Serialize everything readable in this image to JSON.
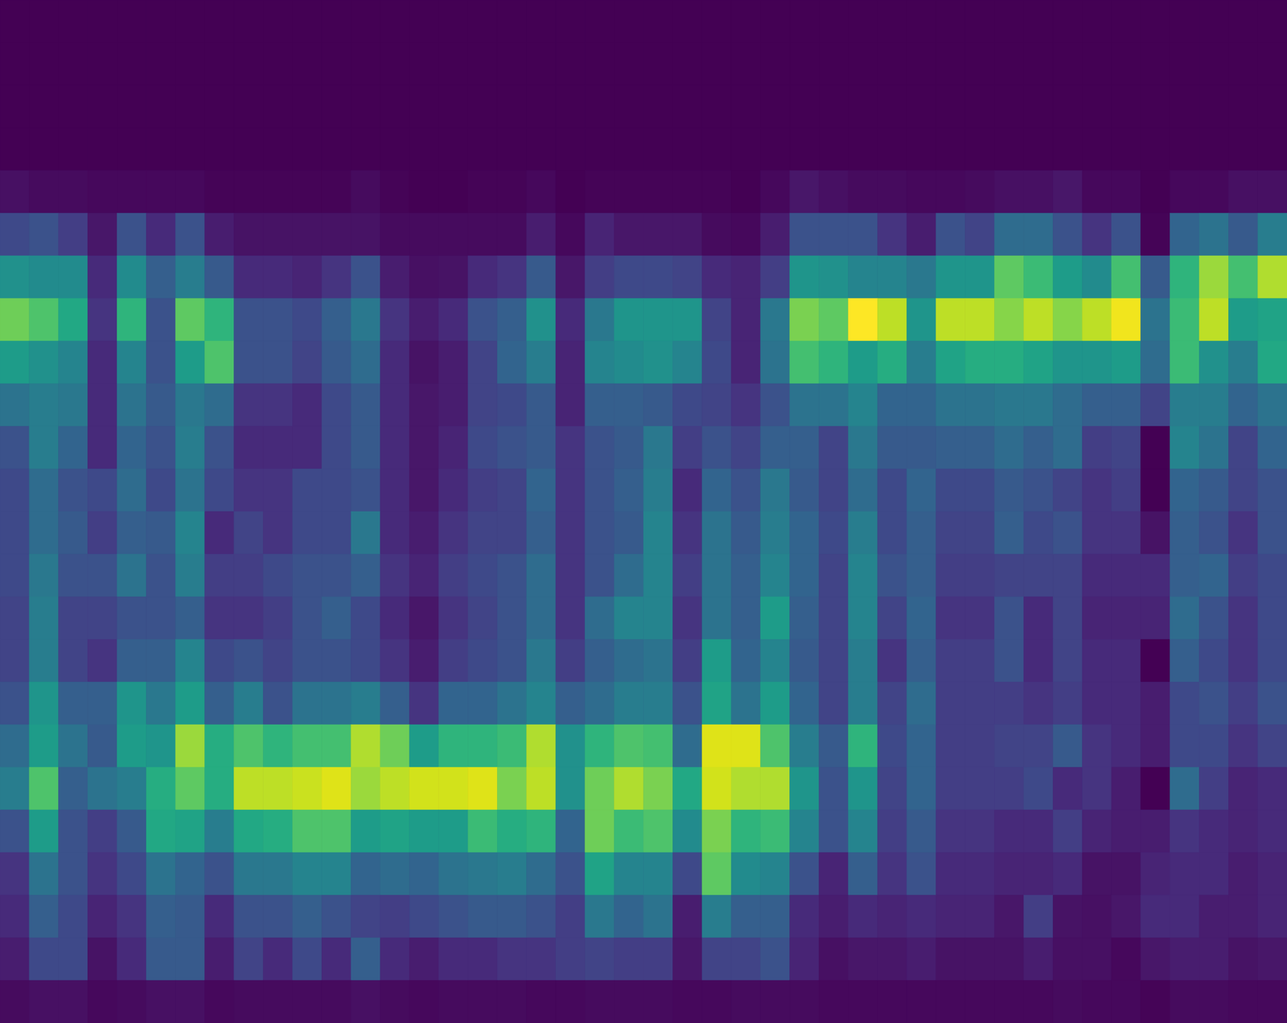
{
  "chart_data": {
    "type": "heatmap",
    "color": "viridis",
    "tick_labels": false,
    "cells": [
      [
        0,
        0,
        0,
        0,
        0,
        0,
        0,
        0,
        0,
        0,
        0,
        0,
        0,
        0,
        0,
        0,
        0,
        0,
        0,
        0,
        0,
        0,
        0,
        0,
        0,
        0,
        0,
        0,
        0,
        0,
        0,
        0,
        0,
        0,
        0,
        0,
        0,
        0,
        0,
        0,
        0,
        0,
        0,
        0
      ],
      [
        0,
        0,
        0,
        0,
        0,
        0,
        0,
        0,
        0,
        0,
        0,
        0,
        0,
        0,
        0,
        0,
        0,
        0,
        0,
        0,
        0,
        0,
        0,
        0,
        0,
        0,
        0,
        0,
        0,
        0,
        0,
        0,
        0,
        0,
        0,
        0,
        0,
        0,
        0,
        0,
        0,
        0,
        0,
        0
      ],
      [
        0,
        0,
        0,
        0,
        0,
        0,
        0,
        0,
        0,
        0,
        0,
        0,
        0,
        0,
        0,
        0,
        0,
        0,
        0,
        0,
        0,
        0,
        0,
        0,
        0,
        0,
        0,
        0,
        0,
        0,
        0,
        0,
        0,
        0,
        0,
        0,
        0,
        0,
        0,
        0,
        0,
        0,
        0,
        0
      ],
      [
        0,
        0,
        0,
        0,
        0,
        0,
        0,
        0,
        0,
        0,
        0,
        0,
        0,
        0,
        0,
        0,
        0,
        0,
        0,
        0,
        0,
        0,
        0,
        0,
        0,
        0,
        0,
        0,
        0,
        0,
        0,
        0,
        0,
        0,
        0,
        0,
        0,
        0,
        0,
        0,
        0,
        0,
        0,
        0
      ],
      [
        0.04,
        0.03,
        0.03,
        0.02,
        0.02,
        0.02,
        0.02,
        0.01,
        0.01,
        0.01,
        0.01,
        0.01,
        0.03,
        0.01,
        0,
        0,
        0.01,
        0.01,
        0.02,
        0,
        0.01,
        0.01,
        0.01,
        0.01,
        0.01,
        0,
        0.02,
        0.06,
        0.04,
        0.03,
        0.03,
        0.02,
        0.02,
        0.03,
        0.04,
        0.04,
        0.06,
        0.02,
        0.02,
        0,
        0.02,
        0.02,
        0.04,
        0.04
      ],
      [
        0.22,
        0.25,
        0.18,
        0.06,
        0.25,
        0.12,
        0.25,
        0.08,
        0.05,
        0.05,
        0.05,
        0.05,
        0.05,
        0.03,
        0.03,
        0.03,
        0.03,
        0.03,
        0.08,
        0.02,
        0.1,
        0.06,
        0.06,
        0.06,
        0.03,
        0.02,
        0.08,
        0.25,
        0.25,
        0.25,
        0.15,
        0.08,
        0.25,
        0.2,
        0.35,
        0.35,
        0.25,
        0.15,
        0.25,
        0.01,
        0.32,
        0.38,
        0.28,
        0.42
      ],
      [
        0.5,
        0.48,
        0.48,
        0.12,
        0.48,
        0.3,
        0.42,
        0.28,
        0.12,
        0.12,
        0.1,
        0.15,
        0.25,
        0.08,
        0.04,
        0.05,
        0.12,
        0.15,
        0.28,
        0.06,
        0.18,
        0.22,
        0.22,
        0.2,
        0.12,
        0.1,
        0.18,
        0.52,
        0.5,
        0.45,
        0.45,
        0.4,
        0.52,
        0.52,
        0.75,
        0.68,
        0.55,
        0.48,
        0.7,
        0.28,
        0.65,
        0.85,
        0.7,
        0.88
      ],
      [
        0.78,
        0.72,
        0.6,
        0.15,
        0.65,
        0.25,
        0.75,
        0.65,
        0.25,
        0.25,
        0.22,
        0.3,
        0.4,
        0.15,
        0.08,
        0.12,
        0.25,
        0.3,
        0.5,
        0.12,
        0.4,
        0.52,
        0.52,
        0.52,
        0.2,
        0.1,
        0.4,
        0.8,
        0.75,
        1.0,
        0.9,
        0.52,
        0.9,
        0.9,
        0.82,
        0.9,
        0.82,
        0.9,
        0.98,
        0.38,
        0.68,
        0.9,
        0.55,
        0.58
      ],
      [
        0.55,
        0.5,
        0.45,
        0.12,
        0.45,
        0.25,
        0.55,
        0.72,
        0.25,
        0.25,
        0.2,
        0.28,
        0.35,
        0.12,
        0.05,
        0.08,
        0.2,
        0.32,
        0.42,
        0.1,
        0.45,
        0.48,
        0.5,
        0.45,
        0.22,
        0.1,
        0.38,
        0.7,
        0.65,
        0.55,
        0.62,
        0.42,
        0.58,
        0.62,
        0.62,
        0.58,
        0.52,
        0.52,
        0.55,
        0.35,
        0.68,
        0.5,
        0.42,
        0.6
      ],
      [
        0.38,
        0.42,
        0.4,
        0.12,
        0.38,
        0.28,
        0.4,
        0.35,
        0.15,
        0.15,
        0.12,
        0.22,
        0.28,
        0.12,
        0.06,
        0.08,
        0.2,
        0.22,
        0.28,
        0.1,
        0.3,
        0.3,
        0.28,
        0.22,
        0.2,
        0.15,
        0.25,
        0.38,
        0.38,
        0.45,
        0.32,
        0.32,
        0.38,
        0.38,
        0.4,
        0.4,
        0.35,
        0.3,
        0.3,
        0.2,
        0.42,
        0.42,
        0.32,
        0.38
      ],
      [
        0.25,
        0.42,
        0.32,
        0.12,
        0.32,
        0.25,
        0.42,
        0.25,
        0.12,
        0.12,
        0.12,
        0.22,
        0.28,
        0.12,
        0.06,
        0.1,
        0.22,
        0.25,
        0.28,
        0.15,
        0.25,
        0.28,
        0.4,
        0.18,
        0.25,
        0.2,
        0.3,
        0.3,
        0.2,
        0.4,
        0.28,
        0.28,
        0.3,
        0.3,
        0.35,
        0.3,
        0.35,
        0.18,
        0.2,
        0,
        0.45,
        0.38,
        0.2,
        0.32
      ],
      [
        0.22,
        0.35,
        0.25,
        0.22,
        0.35,
        0.22,
        0.38,
        0.22,
        0.15,
        0.15,
        0.22,
        0.22,
        0.25,
        0.12,
        0.06,
        0.12,
        0.18,
        0.2,
        0.32,
        0.15,
        0.25,
        0.3,
        0.42,
        0.12,
        0.32,
        0.25,
        0.4,
        0.28,
        0.2,
        0.35,
        0.22,
        0.32,
        0.22,
        0.22,
        0.28,
        0.25,
        0.2,
        0.15,
        0.18,
        0,
        0.32,
        0.28,
        0.2,
        0.25
      ],
      [
        0.22,
        0.35,
        0.28,
        0.18,
        0.3,
        0.28,
        0.45,
        0.12,
        0.2,
        0.15,
        0.22,
        0.22,
        0.4,
        0.12,
        0.08,
        0.15,
        0.2,
        0.2,
        0.3,
        0.15,
        0.25,
        0.28,
        0.45,
        0.15,
        0.38,
        0.28,
        0.42,
        0.32,
        0.22,
        0.42,
        0.22,
        0.3,
        0.2,
        0.2,
        0.3,
        0.22,
        0.25,
        0.15,
        0.15,
        0.05,
        0.3,
        0.25,
        0.15,
        0.25
      ],
      [
        0.22,
        0.4,
        0.25,
        0.25,
        0.38,
        0.25,
        0.42,
        0.18,
        0.18,
        0.22,
        0.25,
        0.25,
        0.3,
        0.15,
        0.1,
        0.18,
        0.22,
        0.25,
        0.35,
        0.15,
        0.25,
        0.35,
        0.45,
        0.18,
        0.38,
        0.3,
        0.45,
        0.32,
        0.2,
        0.45,
        0.25,
        0.3,
        0.18,
        0.18,
        0.2,
        0.2,
        0.2,
        0.12,
        0.12,
        0.12,
        0.3,
        0.32,
        0.18,
        0.22
      ],
      [
        0.2,
        0.42,
        0.2,
        0.2,
        0.25,
        0.25,
        0.3,
        0.15,
        0.15,
        0.18,
        0.25,
        0.3,
        0.22,
        0.12,
        0.06,
        0.15,
        0.2,
        0.25,
        0.35,
        0.15,
        0.35,
        0.45,
        0.45,
        0.15,
        0.38,
        0.3,
        0.55,
        0.3,
        0.2,
        0.45,
        0.2,
        0.32,
        0.15,
        0.15,
        0.25,
        0.12,
        0.2,
        0.1,
        0.1,
        0.1,
        0.35,
        0.25,
        0.15,
        0.22
      ],
      [
        0.2,
        0.42,
        0.2,
        0.15,
        0.3,
        0.3,
        0.45,
        0.22,
        0.25,
        0.2,
        0.25,
        0.25,
        0.22,
        0.15,
        0.08,
        0.18,
        0.22,
        0.25,
        0.4,
        0.18,
        0.3,
        0.35,
        0.38,
        0.18,
        0.55,
        0.32,
        0.45,
        0.28,
        0.2,
        0.42,
        0.15,
        0.3,
        0.18,
        0.18,
        0.25,
        0.12,
        0.2,
        0.12,
        0.12,
        0,
        0.3,
        0.22,
        0.15,
        0.22
      ],
      [
        0.25,
        0.52,
        0.3,
        0.3,
        0.52,
        0.4,
        0.55,
        0.3,
        0.42,
        0.25,
        0.38,
        0.38,
        0.42,
        0.3,
        0.15,
        0.32,
        0.32,
        0.38,
        0.45,
        0.3,
        0.35,
        0.42,
        0.42,
        0.25,
        0.58,
        0.38,
        0.55,
        0.32,
        0.2,
        0.42,
        0.2,
        0.35,
        0.18,
        0.18,
        0.18,
        0.15,
        0.18,
        0.12,
        0.12,
        0.08,
        0.22,
        0.25,
        0.18,
        0.25
      ],
      [
        0.35,
        0.55,
        0.38,
        0.28,
        0.55,
        0.52,
        0.85,
        0.62,
        0.72,
        0.65,
        0.7,
        0.7,
        0.88,
        0.78,
        0.55,
        0.65,
        0.65,
        0.68,
        0.88,
        0.5,
        0.65,
        0.72,
        0.7,
        0.35,
        0.95,
        0.95,
        0.72,
        0.42,
        0.28,
        0.65,
        0.22,
        0.32,
        0.18,
        0.18,
        0.2,
        0.2,
        0.28,
        0.15,
        0.12,
        0.08,
        0.22,
        0.22,
        0.15,
        0.2
      ],
      [
        0.42,
        0.72,
        0.3,
        0.38,
        0.42,
        0.62,
        0.75,
        0.62,
        0.9,
        0.9,
        0.92,
        0.95,
        0.85,
        0.9,
        0.93,
        0.93,
        0.95,
        0.8,
        0.9,
        0.5,
        0.78,
        0.88,
        0.8,
        0.6,
        0.93,
        0.88,
        0.88,
        0.52,
        0.25,
        0.52,
        0.2,
        0.32,
        0.18,
        0.18,
        0.18,
        0.22,
        0.12,
        0.15,
        0.08,
        0,
        0.35,
        0.18,
        0.1,
        0.12
      ],
      [
        0.25,
        0.55,
        0.25,
        0.18,
        0.28,
        0.6,
        0.58,
        0.42,
        0.6,
        0.62,
        0.72,
        0.72,
        0.55,
        0.58,
        0.55,
        0.55,
        0.68,
        0.62,
        0.65,
        0.32,
        0.78,
        0.68,
        0.72,
        0.48,
        0.8,
        0.65,
        0.68,
        0.45,
        0.25,
        0.45,
        0.18,
        0.28,
        0.15,
        0.15,
        0.12,
        0.12,
        0.18,
        0.1,
        0.08,
        0.08,
        0.15,
        0.12,
        0.1,
        0.12
      ],
      [
        0.15,
        0.38,
        0.25,
        0.15,
        0.22,
        0.38,
        0.32,
        0.25,
        0.4,
        0.4,
        0.45,
        0.45,
        0.32,
        0.35,
        0.32,
        0.38,
        0.4,
        0.42,
        0.35,
        0.25,
        0.58,
        0.45,
        0.45,
        0.22,
        0.75,
        0.48,
        0.45,
        0.25,
        0.1,
        0.3,
        0.15,
        0.25,
        0.12,
        0.12,
        0.1,
        0.1,
        0.12,
        0.05,
        0.05,
        0.1,
        0.12,
        0.12,
        0.08,
        0.1
      ],
      [
        0.12,
        0.3,
        0.22,
        0.1,
        0.15,
        0.3,
        0.28,
        0.12,
        0.25,
        0.25,
        0.3,
        0.25,
        0.2,
        0.18,
        0.22,
        0.25,
        0.28,
        0.28,
        0.25,
        0.18,
        0.4,
        0.32,
        0.38,
        0.08,
        0.42,
        0.3,
        0.3,
        0.12,
        0.08,
        0.12,
        0.1,
        0.12,
        0.1,
        0.1,
        0.06,
        0.18,
        0.05,
        0.04,
        0.06,
        0.12,
        0.12,
        0.08,
        0.08,
        0.1
      ],
      [
        0.08,
        0.22,
        0.22,
        0.05,
        0.12,
        0.28,
        0.28,
        0.08,
        0.2,
        0.12,
        0.22,
        0.12,
        0.3,
        0.12,
        0.08,
        0.12,
        0.12,
        0.15,
        0.15,
        0.18,
        0.2,
        0.18,
        0.18,
        0.06,
        0.2,
        0.2,
        0.25,
        0.1,
        0.04,
        0.06,
        0.06,
        0.08,
        0.05,
        0.05,
        0.05,
        0.08,
        0.04,
        0.04,
        0.02,
        0.06,
        0.08,
        0.08,
        0.05,
        0.06
      ],
      [
        0.03,
        0.04,
        0.04,
        0.02,
        0.03,
        0.04,
        0.04,
        0.02,
        0.03,
        0.03,
        0.03,
        0.03,
        0.04,
        0.03,
        0.02,
        0.03,
        0.03,
        0.03,
        0.02,
        0.02,
        0.03,
        0.03,
        0.03,
        0.02,
        0.02,
        0.03,
        0.03,
        0.03,
        0.02,
        0.02,
        0.02,
        0.02,
        0.02,
        0.02,
        0.02,
        0.02,
        0.03,
        0.02,
        0.02,
        0.01,
        0.03,
        0.03,
        0.02,
        0.02
      ]
    ]
  }
}
